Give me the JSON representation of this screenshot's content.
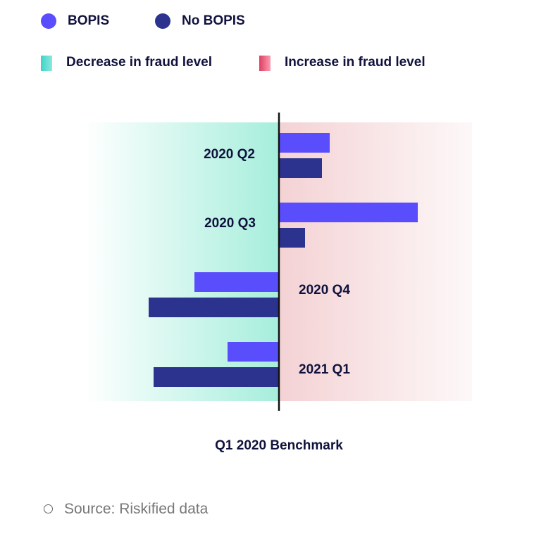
{
  "legend": {
    "series": [
      {
        "label": "BOPIS",
        "color": "#5a4dfc"
      },
      {
        "label": "No BOPIS",
        "color": "#2b338e"
      }
    ],
    "zones": [
      {
        "label": "Decrease in fraud level"
      },
      {
        "label": "Increase in fraud level"
      }
    ]
  },
  "chart_data": {
    "type": "bar",
    "orientation": "horizontal",
    "title": "Q1 2020 Benchmark",
    "xlabel": "Q1 2020 Benchmark",
    "ylabel": "",
    "categories": [
      "2020 Q2",
      "2020 Q3",
      "2020 Q4",
      "2021 Q1"
    ],
    "series": [
      {
        "name": "BOPIS",
        "values": [
          72,
          197,
          -120,
          -73
        ]
      },
      {
        "name": "No BOPIS",
        "values": [
          61,
          37,
          -185,
          -178
        ]
      }
    ],
    "units": "relative change vs Q1 2020 (unlabeled scale)",
    "xlim": [
      -275,
      275
    ],
    "grid": false,
    "legend_position": "top-left"
  },
  "footer": {
    "source": "Source: Riskified data"
  }
}
